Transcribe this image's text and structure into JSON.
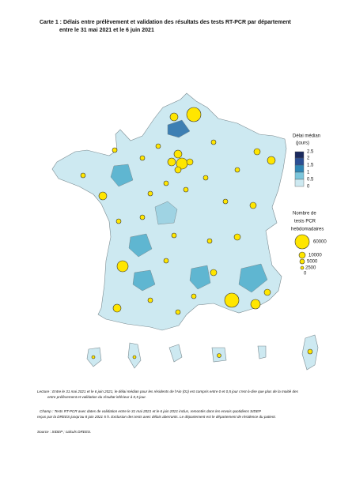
{
  "header": {
    "title_lines": [
      "Carte 1 : Délais entre prélèvement et validation des résultats des tests RT-PCR par département",
      "entre le 31 mai 2021 et le 6 juin 2021"
    ]
  },
  "legend_delay": {
    "title_lines": [
      "Délai médian",
      "(jours)"
    ],
    "labels": [
      "2.5",
      "2",
      "1.5",
      "1",
      "0.5",
      "0"
    ]
  },
  "legend_size": {
    "title_lines": [
      "Nombre de",
      "tests PCR",
      "hebdomadaires"
    ],
    "labels": [
      "60000",
      "10000",
      "5000",
      "2500",
      "0"
    ]
  },
  "notes": {
    "lecture": [
      "Lecture : Entre le 31 mai 2021 et le 6 juin 2021, le délai médian pour les résidents de l'Ain (01) est compris entre 0 et 0,5 jour c'est-à-dire que plus de la moitié des",
      "entre prélèvement et validation du résultat inférieur à 0,5 jour."
    ],
    "champ": [
      "Champ : Tests RT-PCR avec dates de validation entre le 31 mai 2021 et le 6 juin 2021 inclus, remontés dans les envois quotidiens SIDEP",
      "reçus par la DREES jusqu'au 8 juin 2021 5 h. Exclusion des tests avec délais aberrants. Le département est le département de résidence du patient."
    ],
    "source": "Source : SIDEP ; calculs DREES."
  }
}
